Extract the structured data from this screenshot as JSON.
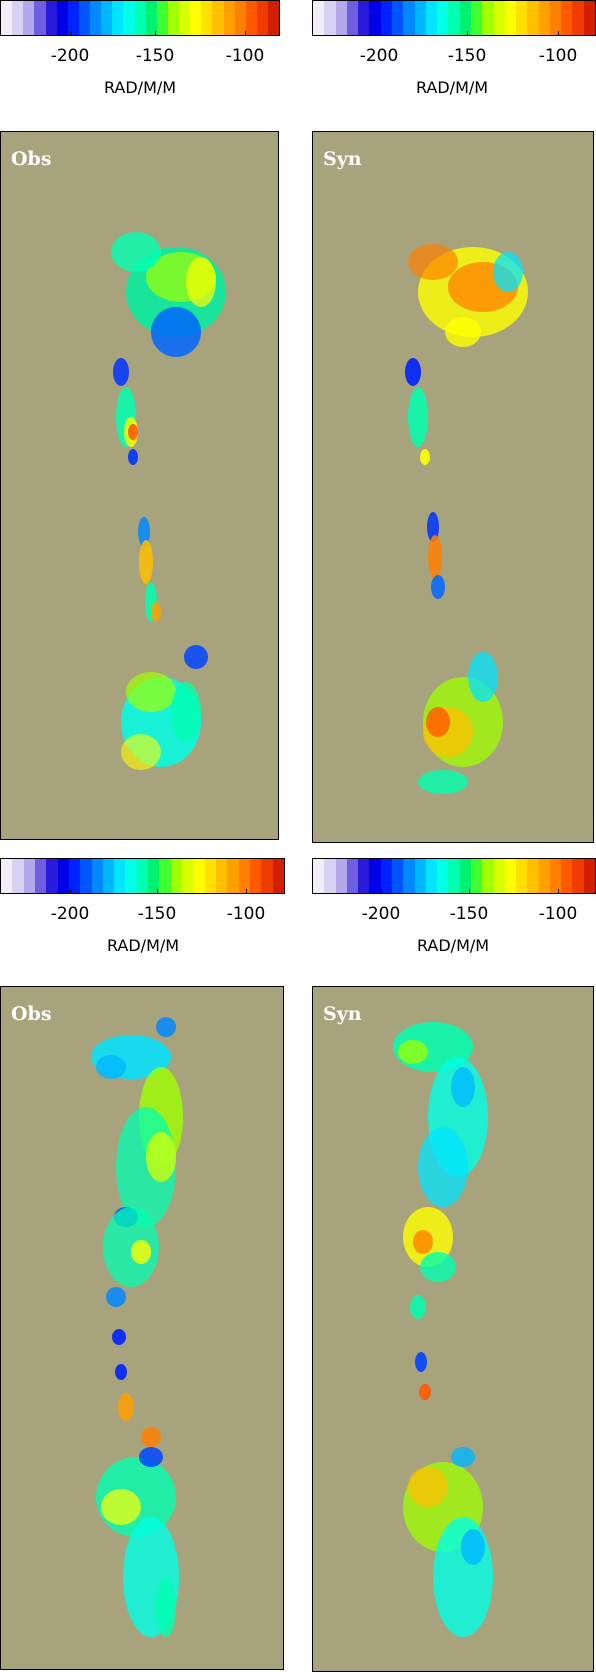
{
  "colormap": [
    "#f3eefa",
    "#d8d2f2",
    "#b4a8ea",
    "#6f5fe0",
    "#2b1cdc",
    "#0000e8",
    "#0022ff",
    "#0055ff",
    "#0088ff",
    "#00b6ff",
    "#00e4ff",
    "#00ffe6",
    "#00ffb0",
    "#00f070",
    "#40ff30",
    "#a0ff00",
    "#d8ff00",
    "#ffff00",
    "#ffe000",
    "#ffc000",
    "#ffa000",
    "#ff8000",
    "#ff5a00",
    "#f03c00",
    "#d02000"
  ],
  "colorbars": [
    {
      "ticks": [
        "-200",
        "-150",
        "-100"
      ],
      "unit": "RAD/M/M"
    },
    {
      "ticks": [
        "-200",
        "-150",
        "-100"
      ],
      "unit": "RAD/M/M"
    },
    {
      "ticks": [
        "-200",
        "-150",
        "-100"
      ],
      "unit": "RAD/M/M"
    },
    {
      "ticks": [
        "-200",
        "-150",
        "-100"
      ],
      "unit": "RAD/M/M"
    }
  ],
  "panels": [
    {
      "label": "Obs"
    },
    {
      "label": "Syn"
    },
    {
      "label": "Obs"
    },
    {
      "label": "Syn"
    }
  ],
  "chart_data": [
    {
      "type": "heatmap",
      "title": "Obs",
      "colorbar_label": "RAD/M/M",
      "colorbar_ticks": [
        -200,
        -150,
        -100
      ],
      "background_color": "#a7a47d",
      "value_range": [
        -240,
        -80
      ]
    },
    {
      "type": "heatmap",
      "title": "Syn",
      "colorbar_label": "RAD/M/M",
      "colorbar_ticks": [
        -200,
        -150,
        -100
      ],
      "background_color": "#a7a47d",
      "value_range": [
        -240,
        -80
      ]
    },
    {
      "type": "heatmap",
      "title": "Obs",
      "colorbar_label": "RAD/M/M",
      "colorbar_ticks": [
        -200,
        -150,
        -100
      ],
      "background_color": "#a7a47d",
      "value_range": [
        -240,
        -80
      ]
    },
    {
      "type": "heatmap",
      "title": "Syn",
      "colorbar_label": "RAD/M/M",
      "colorbar_ticks": [
        -200,
        -150,
        -100
      ],
      "background_color": "#a7a47d",
      "value_range": [
        -240,
        -80
      ]
    }
  ]
}
